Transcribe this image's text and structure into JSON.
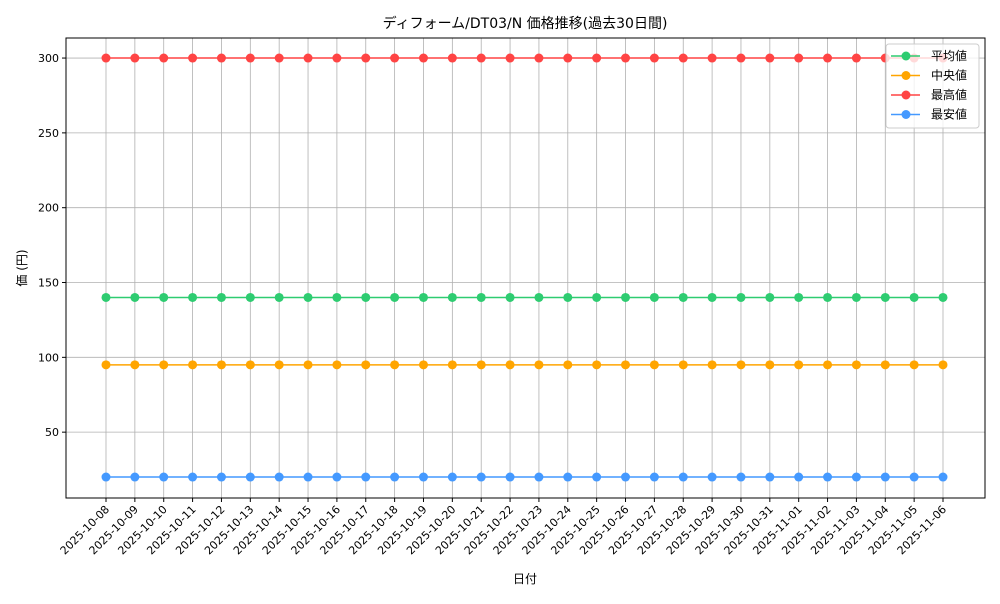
{
  "chart_data": {
    "type": "line",
    "title": "ディフォーム/DT03/N 価格推移(過去30日間)",
    "xlabel": "日付",
    "ylabel": "価 (円)",
    "ylim": [
      6,
      313.4
    ],
    "yticks": [
      50,
      100,
      150,
      200,
      250,
      300
    ],
    "grid": true,
    "legend_position": "top-right",
    "x": [
      "2025-10-08",
      "2025-10-09",
      "2025-10-10",
      "2025-10-11",
      "2025-10-12",
      "2025-10-13",
      "2025-10-14",
      "2025-10-15",
      "2025-10-16",
      "2025-10-17",
      "2025-10-18",
      "2025-10-19",
      "2025-10-20",
      "2025-10-21",
      "2025-10-22",
      "2025-10-23",
      "2025-10-24",
      "2025-10-25",
      "2025-10-26",
      "2025-10-27",
      "2025-10-28",
      "2025-10-29",
      "2025-10-30",
      "2025-10-31",
      "2025-11-01",
      "2025-11-02",
      "2025-11-03",
      "2025-11-04",
      "2025-11-05",
      "2025-11-06"
    ],
    "series": [
      {
        "name": "平均値",
        "color": "#2ecc71",
        "values": [
          140,
          140,
          140,
          140,
          140,
          140,
          140,
          140,
          140,
          140,
          140,
          140,
          140,
          140,
          140,
          140,
          140,
          140,
          140,
          140,
          140,
          140,
          140,
          140,
          140,
          140,
          140,
          140,
          140,
          140
        ]
      },
      {
        "name": "中央値",
        "color": "#ffa500",
        "values": [
          95,
          95,
          95,
          95,
          95,
          95,
          95,
          95,
          95,
          95,
          95,
          95,
          95,
          95,
          95,
          95,
          95,
          95,
          95,
          95,
          95,
          95,
          95,
          95,
          95,
          95,
          95,
          95,
          95,
          95
        ]
      },
      {
        "name": "最高値",
        "color": "#ff4444",
        "values": [
          300,
          300,
          300,
          300,
          300,
          300,
          300,
          300,
          300,
          300,
          300,
          300,
          300,
          300,
          300,
          300,
          300,
          300,
          300,
          300,
          300,
          300,
          300,
          300,
          300,
          300,
          300,
          300,
          300,
          300
        ]
      },
      {
        "name": "最安値",
        "color": "#4499ff",
        "values": [
          20,
          20,
          20,
          20,
          20,
          20,
          20,
          20,
          20,
          20,
          20,
          20,
          20,
          20,
          20,
          20,
          20,
          20,
          20,
          20,
          20,
          20,
          20,
          20,
          20,
          20,
          20,
          20,
          20,
          20
        ]
      }
    ]
  }
}
